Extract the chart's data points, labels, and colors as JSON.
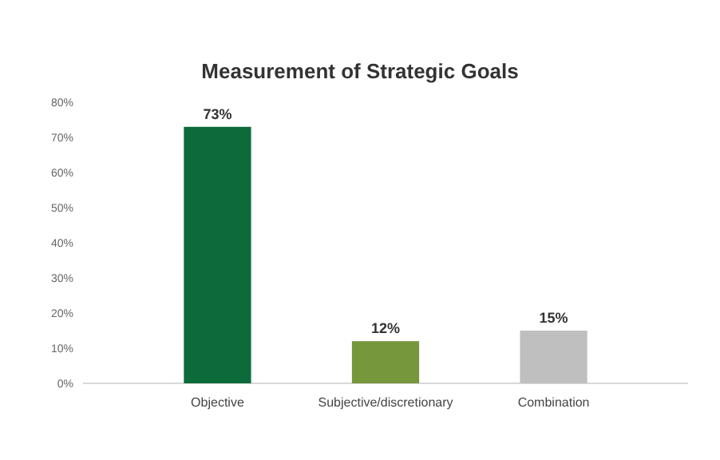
{
  "chart_data": {
    "type": "bar",
    "title": "Measurement of Strategic Goals",
    "categories": [
      "Objective",
      "Subjective/discretionary",
      "Combination"
    ],
    "values": [
      73,
      12,
      15
    ],
    "colors": [
      "#0d6a3a",
      "#76973b",
      "#bfbfbf"
    ],
    "value_labels": [
      "73%",
      "12%",
      "15%"
    ],
    "ylim": [
      0,
      80
    ],
    "yticks": [
      {
        "value": 0,
        "label": "0%"
      },
      {
        "value": 10,
        "label": "10%"
      },
      {
        "value": 20,
        "label": "20%"
      },
      {
        "value": 30,
        "label": "30%"
      },
      {
        "value": 40,
        "label": "40%"
      },
      {
        "value": 50,
        "label": "50%"
      },
      {
        "value": 60,
        "label": "60%"
      },
      {
        "value": 70,
        "label": "70%"
      },
      {
        "value": 80,
        "label": "80%"
      }
    ],
    "grid": false
  }
}
